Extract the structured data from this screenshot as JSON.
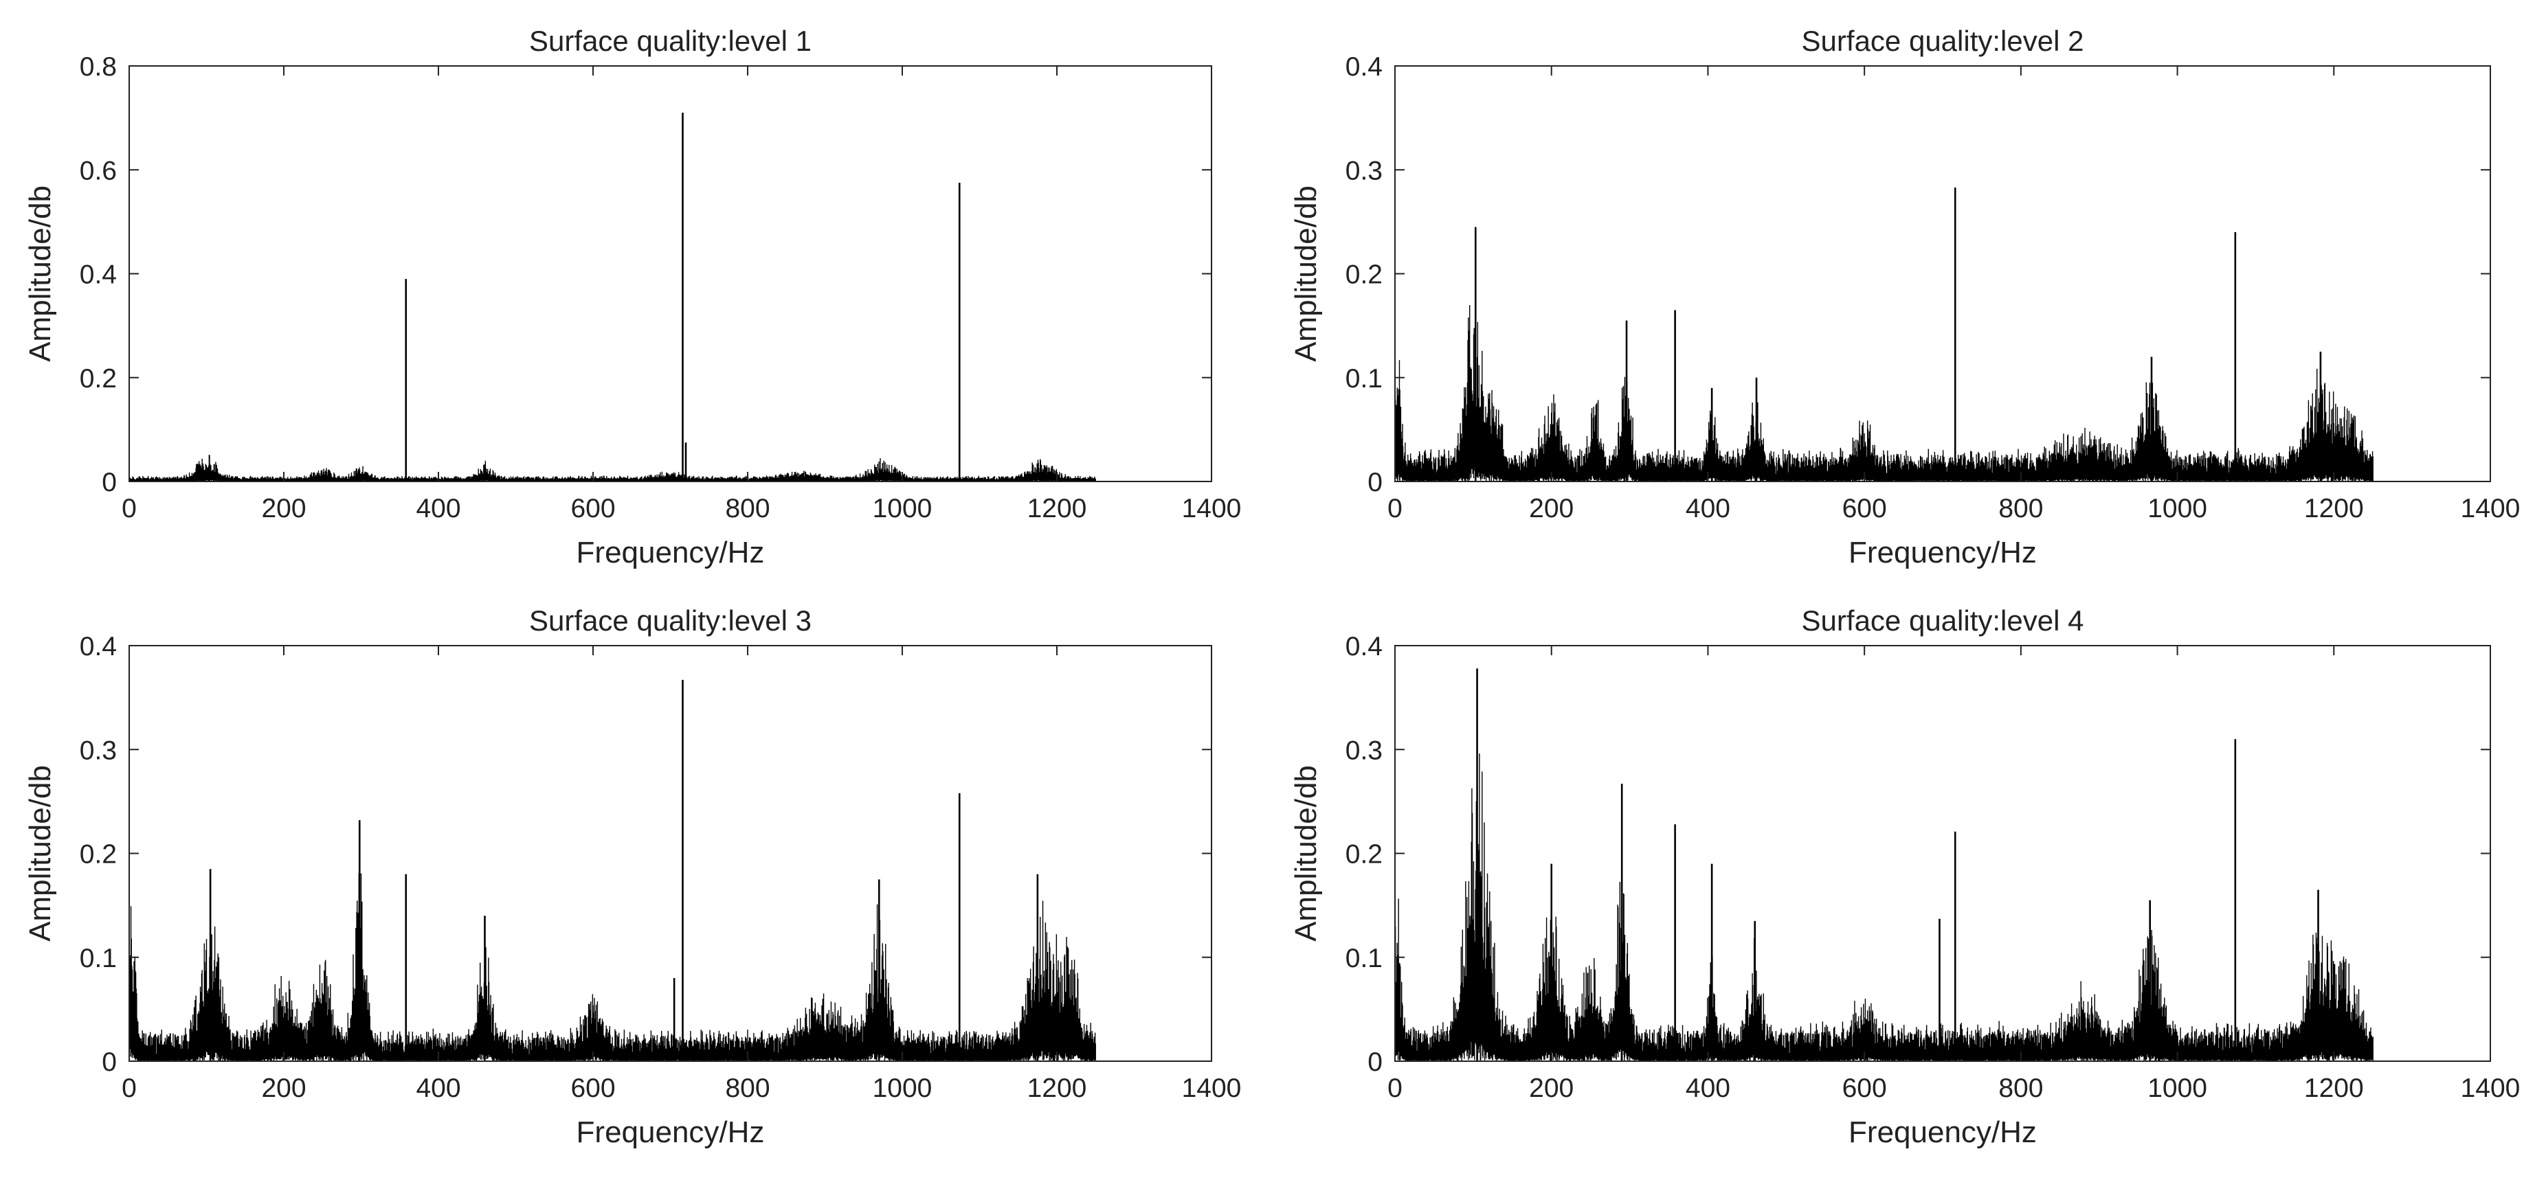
{
  "figure": {
    "background_color": "#ffffff",
    "line_color": "#000000",
    "axis_color": "#222222"
  },
  "chart_data": [
    {
      "type": "line",
      "id": "level1",
      "title": "Surface quality:level 1",
      "xlabel": "Frequency/Hz",
      "ylabel": "Amplitude/db",
      "xlim": [
        0,
        1400
      ],
      "ylim": [
        0,
        0.8
      ],
      "xticks": [
        0,
        200,
        400,
        600,
        800,
        1000,
        1200,
        1400
      ],
      "xtick_labels": [
        "0",
        "200",
        "400",
        "600",
        "800",
        "1000",
        "1200",
        "1400"
      ],
      "yticks": [
        0,
        0.2,
        0.4,
        0.6,
        0.8
      ],
      "ytick_labels": [
        "0",
        "0.2",
        "0.4",
        "0.6",
        "0.8"
      ],
      "data_range": [
        0,
        1250
      ],
      "noise_floor": 0.008,
      "noise_spread": 0.006,
      "bumps": [
        [
          100,
          0.045,
          12
        ],
        [
          250,
          0.02,
          10
        ],
        [
          300,
          0.025,
          8
        ],
        [
          460,
          0.03,
          8
        ],
        [
          700,
          0.012,
          15
        ],
        [
          870,
          0.012,
          20
        ],
        [
          975,
          0.035,
          15
        ],
        [
          1180,
          0.035,
          15
        ]
      ],
      "spikes": [
        [
          358,
          0.39
        ],
        [
          716,
          0.71
        ],
        [
          1074,
          0.575
        ],
        [
          720,
          0.075
        ]
      ]
    },
    {
      "type": "line",
      "id": "level2",
      "title": "Surface quality:level 2",
      "xlabel": "Frequency/Hz",
      "ylabel": "Amplitude/db",
      "xlim": [
        0,
        1400
      ],
      "ylim": [
        0,
        0.4
      ],
      "xticks": [
        0,
        200,
        400,
        600,
        800,
        1000,
        1200,
        1400
      ],
      "xtick_labels": [
        "0",
        "200",
        "400",
        "600",
        "800",
        "1000",
        "1200",
        "1400"
      ],
      "yticks": [
        0,
        0.1,
        0.2,
        0.3,
        0.4
      ],
      "ytick_labels": [
        "0",
        "0.1",
        "0.2",
        "0.3",
        "0.4"
      ],
      "data_range": [
        0,
        1250
      ],
      "noise_floor": 0.015,
      "noise_spread": 0.03,
      "bumps": [
        [
          3,
          0.14,
          4
        ],
        [
          100,
          0.17,
          10
        ],
        [
          125,
          0.08,
          8
        ],
        [
          200,
          0.06,
          12
        ],
        [
          255,
          0.07,
          6
        ],
        [
          295,
          0.11,
          6
        ],
        [
          405,
          0.05,
          5
        ],
        [
          460,
          0.07,
          6
        ],
        [
          600,
          0.035,
          10
        ],
        [
          880,
          0.025,
          25
        ],
        [
          965,
          0.08,
          12
        ],
        [
          1180,
          0.08,
          15
        ],
        [
          1215,
          0.05,
          15
        ]
      ],
      "spikes": [
        [
          103,
          0.245
        ],
        [
          296,
          0.155
        ],
        [
          358,
          0.165
        ],
        [
          716,
          0.283
        ],
        [
          1074,
          0.24
        ],
        [
          462,
          0.1
        ],
        [
          405,
          0.09
        ],
        [
          967,
          0.12
        ],
        [
          1183,
          0.125
        ]
      ]
    },
    {
      "type": "line",
      "id": "level3",
      "title": "Surface quality:level 3",
      "xlabel": "Frequency/Hz",
      "ylabel": "Amplitude/db",
      "xlim": [
        0,
        1400
      ],
      "ylim": [
        0,
        0.4
      ],
      "xticks": [
        0,
        200,
        400,
        600,
        800,
        1000,
        1200,
        1400
      ],
      "xtick_labels": [
        "0",
        "200",
        "400",
        "600",
        "800",
        "1000",
        "1200",
        "1400"
      ],
      "yticks": [
        0,
        0.1,
        0.2,
        0.3,
        0.4
      ],
      "ytick_labels": [
        "0",
        "0.1",
        "0.2",
        "0.3",
        "0.4"
      ],
      "data_range": [
        0,
        1250
      ],
      "noise_floor": 0.015,
      "noise_spread": 0.03,
      "bumps": [
        [
          3,
          0.16,
          4
        ],
        [
          105,
          0.14,
          12
        ],
        [
          200,
          0.06,
          15
        ],
        [
          250,
          0.08,
          10
        ],
        [
          298,
          0.16,
          7
        ],
        [
          460,
          0.1,
          8
        ],
        [
          600,
          0.04,
          12
        ],
        [
          900,
          0.04,
          25
        ],
        [
          970,
          0.13,
          10
        ],
        [
          1180,
          0.12,
          15
        ],
        [
          1215,
          0.08,
          15
        ]
      ],
      "spikes": [
        [
          105,
          0.185
        ],
        [
          298,
          0.232
        ],
        [
          358,
          0.18
        ],
        [
          716,
          0.367
        ],
        [
          1074,
          0.258
        ],
        [
          460,
          0.14
        ],
        [
          970,
          0.175
        ],
        [
          1175,
          0.18
        ],
        [
          705,
          0.08
        ]
      ]
    },
    {
      "type": "line",
      "id": "level4",
      "title": "Surface quality:level 4",
      "xlabel": "Frequency/Hz",
      "ylabel": "Amplitude/db",
      "xlim": [
        0,
        1400
      ],
      "ylim": [
        0,
        0.4
      ],
      "xticks": [
        0,
        200,
        400,
        600,
        800,
        1000,
        1200,
        1400
      ],
      "xtick_labels": [
        "0",
        "200",
        "400",
        "600",
        "800",
        "1000",
        "1200",
        "1400"
      ],
      "yticks": [
        0,
        0.1,
        0.2,
        0.3,
        0.4
      ],
      "ytick_labels": [
        "0",
        "0.1",
        "0.2",
        "0.3",
        "0.4"
      ],
      "data_range": [
        0,
        1250
      ],
      "noise_floor": 0.018,
      "noise_spread": 0.035,
      "bumps": [
        [
          3,
          0.15,
          4
        ],
        [
          105,
          0.27,
          14
        ],
        [
          200,
          0.13,
          12
        ],
        [
          250,
          0.08,
          10
        ],
        [
          290,
          0.17,
          7
        ],
        [
          405,
          0.07,
          5
        ],
        [
          460,
          0.09,
          8
        ],
        [
          600,
          0.04,
          12
        ],
        [
          880,
          0.04,
          20
        ],
        [
          965,
          0.11,
          12
        ],
        [
          1180,
          0.1,
          15
        ],
        [
          1215,
          0.07,
          15
        ]
      ],
      "spikes": [
        [
          105,
          0.378
        ],
        [
          290,
          0.267
        ],
        [
          358,
          0.228
        ],
        [
          405,
          0.19
        ],
        [
          696,
          0.137
        ],
        [
          716,
          0.221
        ],
        [
          1074,
          0.31
        ],
        [
          200,
          0.19
        ],
        [
          965,
          0.155
        ],
        [
          1180,
          0.165
        ],
        [
          460,
          0.135
        ]
      ]
    }
  ]
}
